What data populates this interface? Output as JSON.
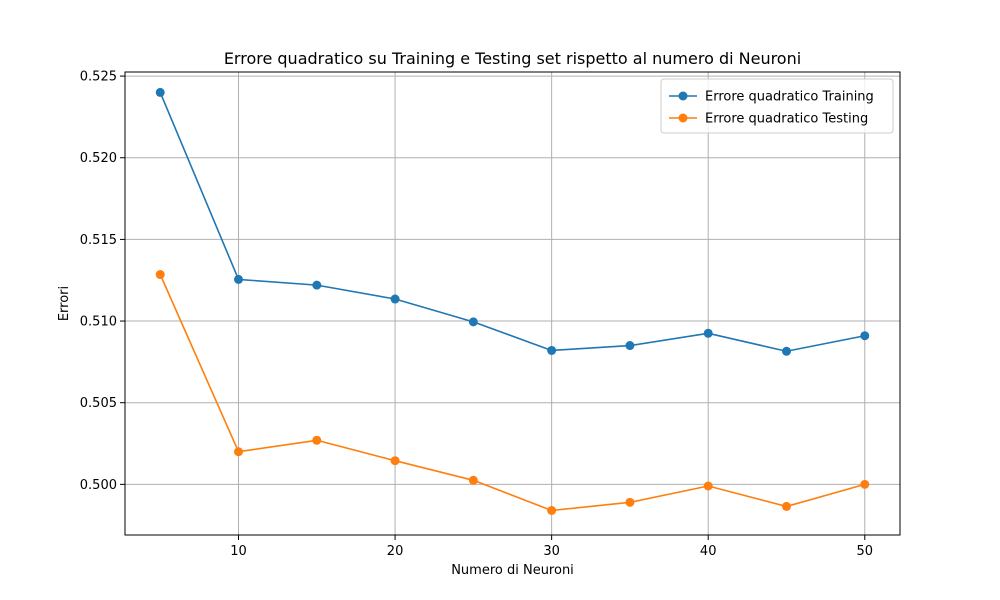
{
  "chart_data": {
    "type": "line",
    "title": "Errore quadratico su Training e Testing set rispetto al numero di Neuroni",
    "xlabel": "Numero di Neuroni",
    "ylabel": "Errori",
    "x": [
      5,
      10,
      15,
      20,
      25,
      30,
      35,
      40,
      45,
      50
    ],
    "xlim": [
      2.75,
      52.25
    ],
    "ylim": [
      0.4969,
      0.52525
    ],
    "x_ticks": [
      10,
      20,
      30,
      40,
      50
    ],
    "y_ticks": [
      0.5,
      0.505,
      0.51,
      0.515,
      0.52,
      0.525
    ],
    "x_tick_labels": [
      "10",
      "20",
      "30",
      "40",
      "50"
    ],
    "y_tick_labels": [
      "0.500",
      "0.505",
      "0.510",
      "0.515",
      "0.520",
      "0.525"
    ],
    "grid": true,
    "legend_position": "top-right",
    "series": [
      {
        "name": "Errore quadratico Training",
        "color": "#1f77b4",
        "marker": "circle",
        "values": [
          0.524,
          0.51255,
          0.5122,
          0.51135,
          0.50995,
          0.5082,
          0.5085,
          0.50925,
          0.50815,
          0.5091
        ]
      },
      {
        "name": "Errore quadratico Testing",
        "color": "#ff7f0e",
        "marker": "circle",
        "values": [
          0.51285,
          0.502,
          0.5027,
          0.50145,
          0.50025,
          0.4984,
          0.4989,
          0.4999,
          0.49865,
          0.5
        ]
      }
    ]
  }
}
